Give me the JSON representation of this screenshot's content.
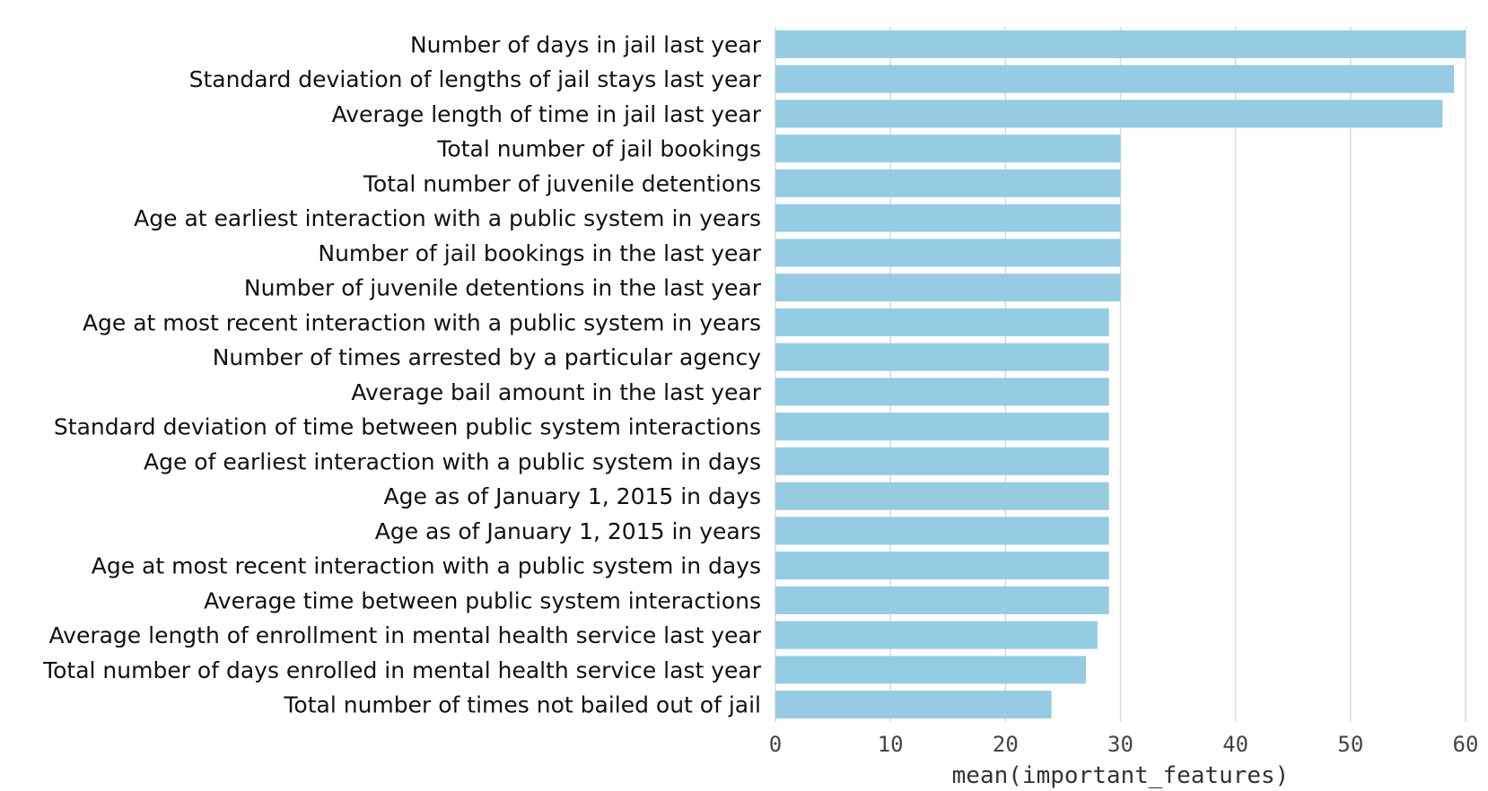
{
  "chart_data": {
    "type": "bar",
    "orientation": "horizontal",
    "title": "",
    "xlabel": "mean(important_features)",
    "ylabel": "",
    "xlim": [
      0,
      60
    ],
    "x_ticks": [
      "0",
      "10",
      "20",
      "30",
      "40",
      "50",
      "60"
    ],
    "grid": "vertical lines",
    "bar_color": "#95cbe3",
    "categories": [
      "Number of days in jail last year",
      "Standard deviation of lengths of jail stays last year",
      "Average length of time in jail last year",
      "Total number of jail bookings",
      "Total number of juvenile detentions",
      "Age at earliest interaction with a public system in years",
      "Number of jail bookings in the last year",
      "Number of juvenile detentions in the last year",
      "Age at most recent interaction with a public system in years",
      "Number of times arrested by a particular agency",
      "Average bail amount in the last year",
      "Standard deviation of time between public system interactions",
      "Age of earliest interaction with a public system in days",
      "Age as of January 1, 2015 in days",
      "Age as of January 1, 2015 in years",
      "Age at most recent interaction with a public system in days",
      "Average time between public system interactions",
      "Average length of enrollment in mental health service last year",
      "Total number of days enrolled in mental health service last year",
      "Total number of times not bailed out of jail"
    ],
    "values": [
      60,
      59,
      58,
      30,
      30,
      30,
      30,
      30,
      29,
      29,
      29,
      29,
      29,
      29,
      29,
      29,
      29,
      28,
      27,
      24
    ]
  }
}
